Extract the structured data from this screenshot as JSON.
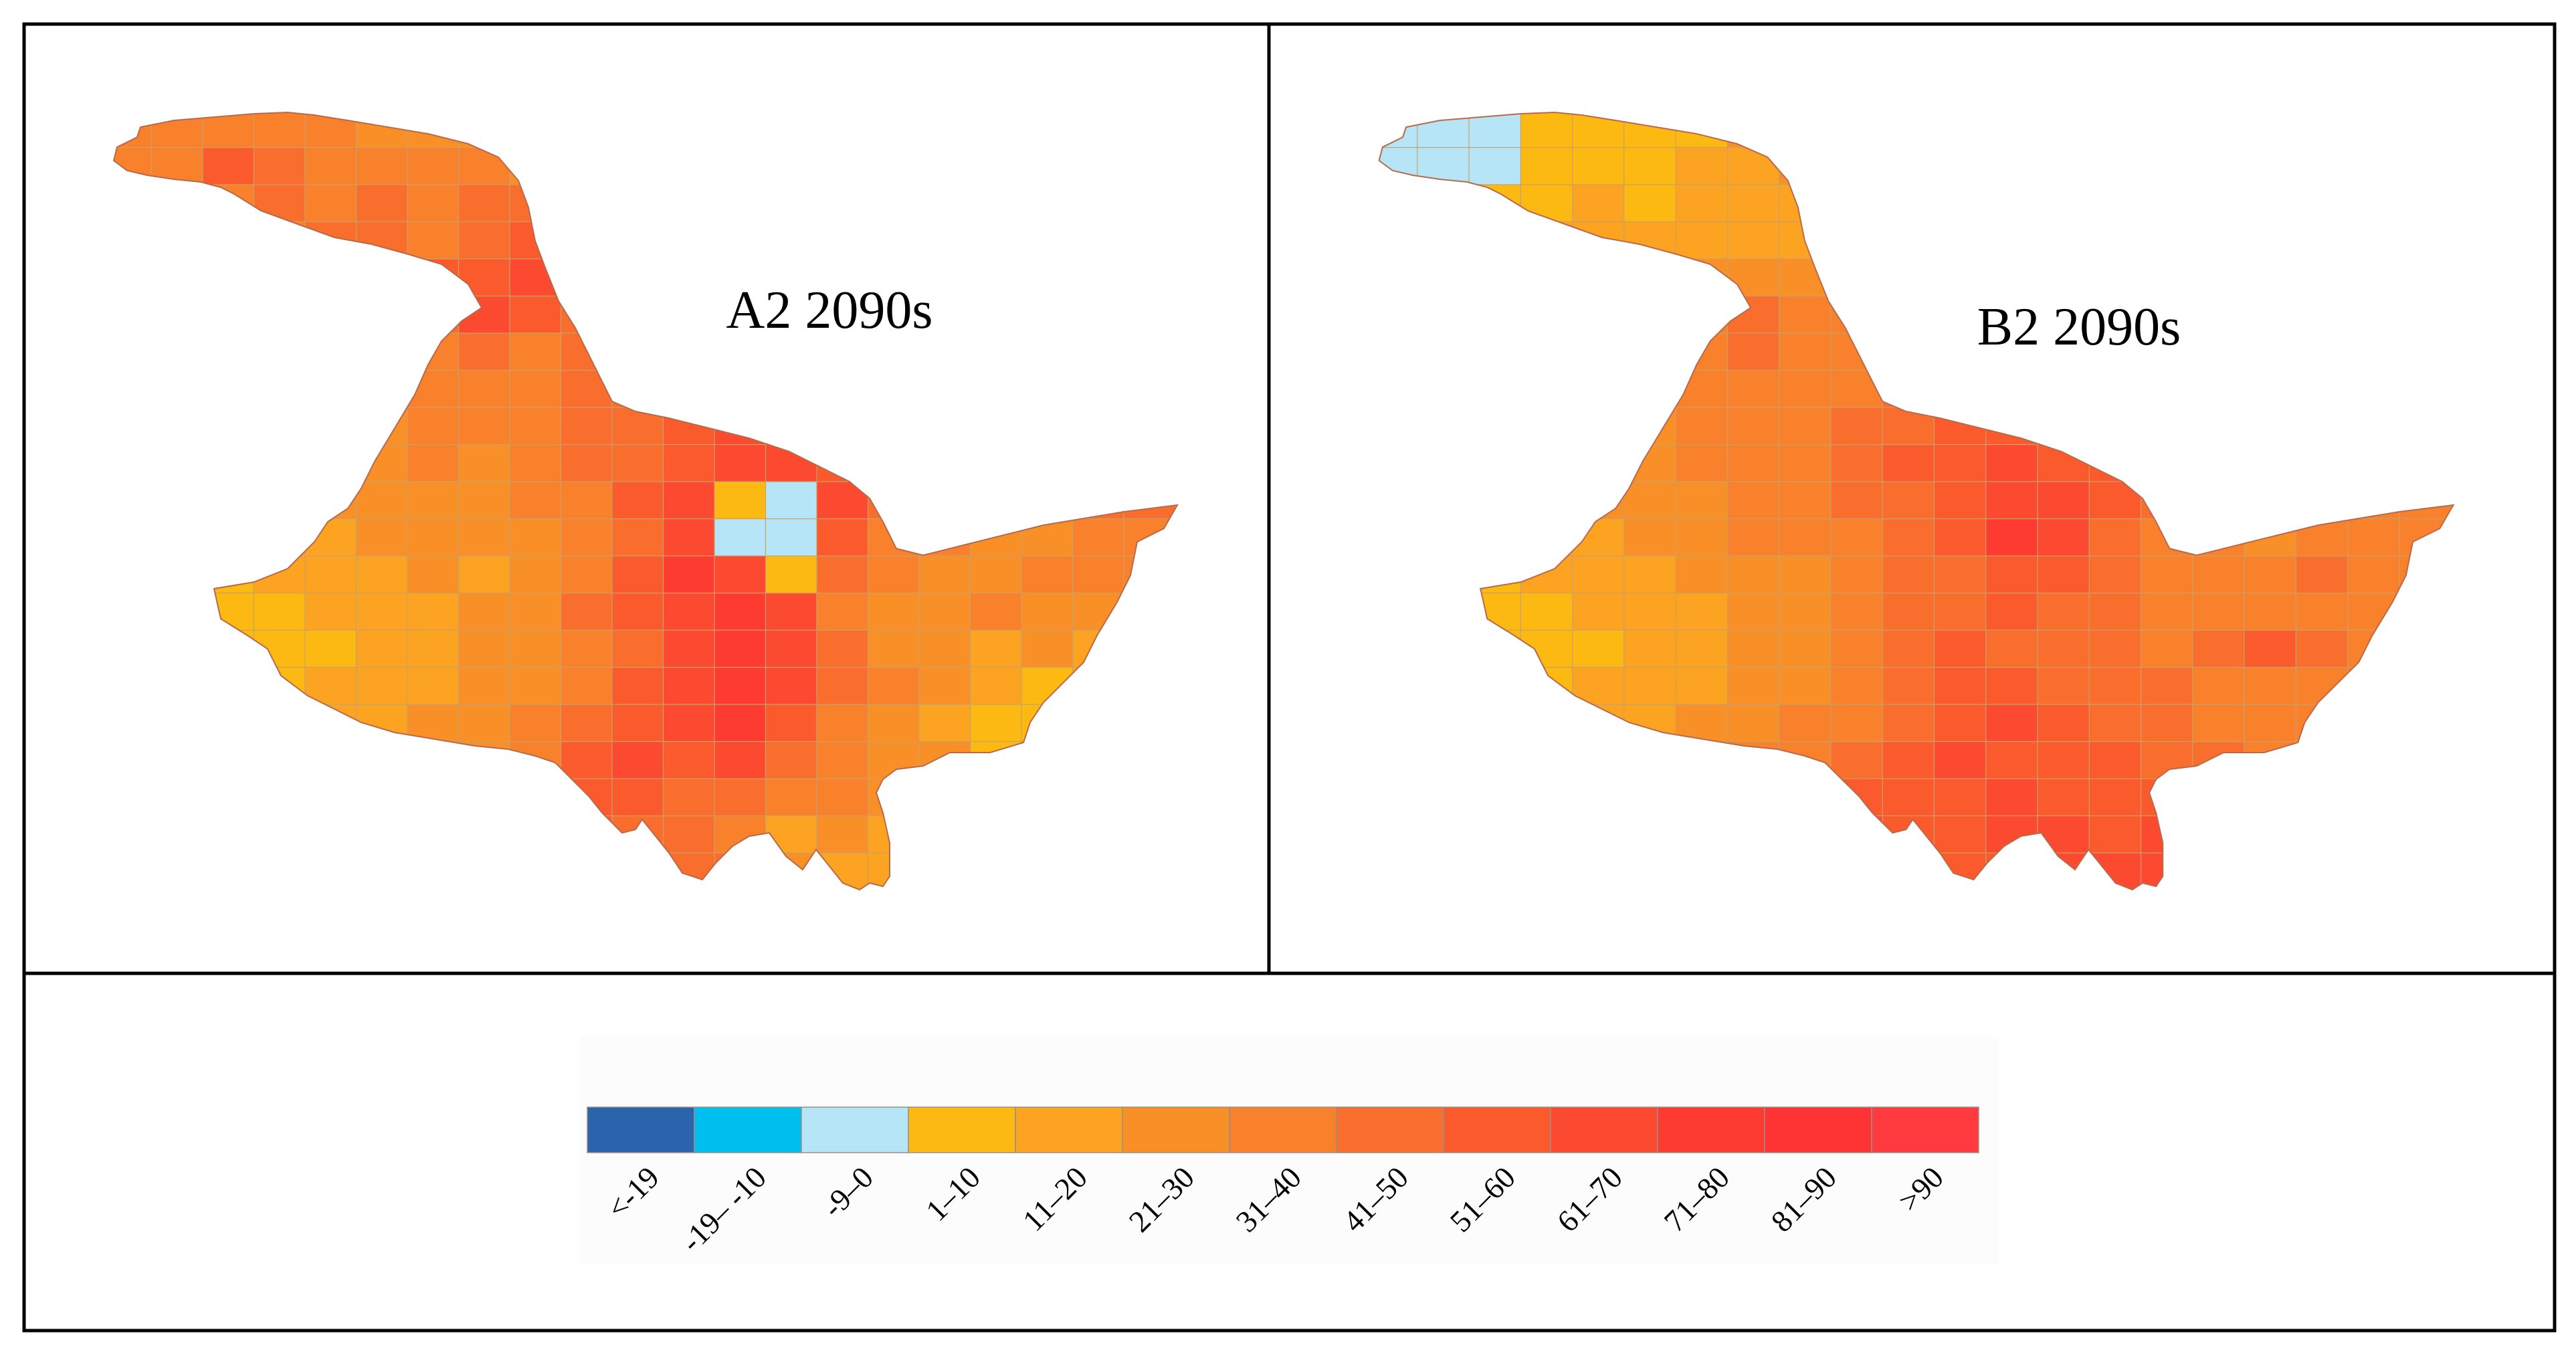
{
  "panels": [
    {
      "id": "a2",
      "label": "A2 2090s"
    },
    {
      "id": "b2",
      "label": "B2 2090s"
    }
  ],
  "legend": {
    "items": [
      {
        "label": "<-19",
        "color": "#2b63ad"
      },
      {
        "label": "-19– -10",
        "color": "#00bfee"
      },
      {
        "label": "-9–0",
        "color": "#b5e5f7"
      },
      {
        "label": "1–10",
        "color": "#fcb912"
      },
      {
        "label": "11–20",
        "color": "#fca422"
      },
      {
        "label": "21–30",
        "color": "#f99027"
      },
      {
        "label": "31–40",
        "color": "#f9812c"
      },
      {
        "label": "41–50",
        "color": "#fa6e2d"
      },
      {
        "label": "51–60",
        "color": "#fb5b2c"
      },
      {
        "label": "61–70",
        "color": "#fc4a30"
      },
      {
        "label": "71–80",
        "color": "#fd3b30"
      },
      {
        "label": "81–90",
        "color": "#fe3333"
      },
      {
        "label": ">90",
        "color": "#ff3b3f"
      }
    ]
  },
  "maps": {
    "a2": {
      "classes": [
        [
          null,
          6,
          6,
          6,
          6,
          5,
          null,
          null,
          null,
          null,
          null,
          null,
          null,
          null,
          null,
          null,
          null,
          null,
          null,
          null,
          null
        ],
        [
          null,
          6,
          8,
          7,
          6,
          6,
          6,
          null,
          null,
          null,
          null,
          null,
          null,
          null,
          null,
          null,
          null,
          null,
          null,
          null,
          null
        ],
        [
          null,
          null,
          6,
          7,
          6,
          7,
          6,
          7,
          null,
          null,
          null,
          null,
          null,
          null,
          null,
          null,
          null,
          null,
          null,
          null,
          null
        ],
        [
          null,
          null,
          6,
          6,
          7,
          7,
          6,
          7,
          8,
          null,
          null,
          null,
          null,
          null,
          null,
          null,
          null,
          null,
          null,
          null,
          null
        ],
        [
          null,
          null,
          null,
          null,
          null,
          null,
          null,
          8,
          9,
          7,
          null,
          null,
          null,
          null,
          null,
          null,
          null,
          null,
          null,
          null,
          null
        ],
        [
          null,
          null,
          null,
          null,
          null,
          null,
          7,
          9,
          8,
          7,
          null,
          null,
          null,
          null,
          null,
          null,
          null,
          null,
          null,
          null,
          null
        ],
        [
          null,
          null,
          null,
          null,
          null,
          7,
          6,
          7,
          6,
          7,
          7,
          6,
          null,
          null,
          null,
          null,
          null,
          null,
          null,
          null,
          null
        ],
        [
          null,
          null,
          null,
          null,
          6,
          6,
          6,
          6,
          6,
          7,
          7,
          8,
          7,
          8,
          null,
          null,
          null,
          null,
          null,
          null,
          null
        ],
        [
          null,
          null,
          null,
          6,
          5,
          5,
          6,
          6,
          6,
          7,
          7,
          8,
          9,
          9,
          8,
          7,
          null,
          null,
          null,
          null,
          null
        ],
        [
          null,
          4,
          4,
          5,
          5,
          5,
          6,
          5,
          6,
          7,
          7,
          8,
          9,
          9,
          8,
          8,
          7,
          7,
          7,
          8,
          8
        ],
        [
          4,
          4,
          4,
          4,
          5,
          5,
          5,
          5,
          6,
          6,
          8,
          9,
          3,
          2,
          9,
          7,
          6,
          6,
          7,
          7,
          null
        ],
        [
          4,
          4,
          3,
          4,
          4,
          5,
          5,
          5,
          5,
          6,
          7,
          9,
          2,
          2,
          8,
          6,
          6,
          5,
          5,
          6,
          null
        ],
        [
          null,
          3,
          3,
          4,
          4,
          4,
          5,
          4,
          5,
          6,
          8,
          10,
          9,
          3,
          7,
          6,
          5,
          5,
          6,
          6,
          null
        ],
        [
          null,
          null,
          3,
          3,
          4,
          4,
          4,
          5,
          5,
          7,
          8,
          9,
          10,
          9,
          6,
          5,
          5,
          6,
          5,
          5,
          null
        ],
        [
          null,
          null,
          3,
          3,
          3,
          4,
          4,
          5,
          5,
          6,
          7,
          9,
          10,
          9,
          7,
          5,
          5,
          4,
          5,
          4,
          null
        ],
        [
          null,
          null,
          null,
          3,
          4,
          4,
          4,
          5,
          5,
          6,
          8,
          9,
          10,
          9,
          7,
          6,
          5,
          4,
          3,
          4,
          null
        ],
        [
          null,
          null,
          null,
          null,
          null,
          4,
          5,
          5,
          6,
          7,
          8,
          9,
          10,
          8,
          6,
          5,
          4,
          3,
          null,
          null,
          null
        ],
        [
          null,
          null,
          null,
          null,
          null,
          null,
          null,
          5,
          6,
          8,
          9,
          8,
          9,
          7,
          6,
          5,
          null,
          null,
          null,
          null,
          null
        ],
        [
          null,
          null,
          null,
          null,
          null,
          null,
          null,
          null,
          9,
          8,
          8,
          7,
          7,
          6,
          6,
          5,
          null,
          null,
          null,
          null,
          null
        ],
        [
          null,
          null,
          null,
          null,
          null,
          null,
          null,
          null,
          7,
          8,
          7,
          7,
          6,
          4,
          5,
          4,
          null,
          null,
          null,
          null,
          null
        ],
        [
          null,
          null,
          null,
          null,
          null,
          null,
          null,
          null,
          null,
          7,
          8,
          7,
          null,
          5,
          4,
          null,
          null,
          null,
          null,
          null,
          null
        ]
      ]
    },
    "b2": {
      "classes": [
        [
          null,
          2,
          2,
          3,
          3,
          3,
          null,
          null,
          null,
          null,
          null,
          null,
          null,
          null,
          null,
          null,
          null,
          null,
          null,
          null,
          null
        ],
        [
          2,
          2,
          2,
          3,
          3,
          3,
          4,
          null,
          null,
          null,
          null,
          null,
          null,
          null,
          null,
          null,
          null,
          null,
          null,
          null,
          null
        ],
        [
          null,
          null,
          3,
          3,
          4,
          3,
          4,
          4,
          null,
          null,
          null,
          null,
          null,
          null,
          null,
          null,
          null,
          null,
          null,
          null,
          null
        ],
        [
          null,
          null,
          3,
          4,
          4,
          4,
          4,
          4,
          4,
          null,
          null,
          null,
          null,
          null,
          null,
          null,
          null,
          null,
          null,
          null,
          null
        ],
        [
          null,
          null,
          null,
          null,
          null,
          null,
          null,
          5,
          5,
          5,
          null,
          null,
          null,
          null,
          null,
          null,
          null,
          null,
          null,
          null,
          null
        ],
        [
          null,
          null,
          null,
          null,
          null,
          null,
          6,
          7,
          6,
          6,
          null,
          null,
          null,
          null,
          null,
          null,
          null,
          null,
          null,
          null,
          null
        ],
        [
          null,
          null,
          null,
          null,
          null,
          6,
          6,
          7,
          6,
          6,
          6,
          6,
          null,
          null,
          null,
          null,
          null,
          null,
          null,
          null,
          null
        ],
        [
          null,
          null,
          null,
          null,
          6,
          6,
          6,
          6,
          6,
          6,
          7,
          6,
          6,
          6,
          null,
          null,
          null,
          null,
          null,
          null,
          null
        ],
        [
          null,
          null,
          null,
          6,
          5,
          5,
          6,
          6,
          6,
          7,
          7,
          8,
          8,
          7,
          6,
          6,
          null,
          null,
          null,
          null,
          null
        ],
        [
          null,
          4,
          4,
          5,
          5,
          5,
          6,
          6,
          6,
          7,
          8,
          8,
          9,
          8,
          8,
          7,
          6,
          6,
          6,
          6,
          6
        ],
        [
          4,
          4,
          4,
          4,
          5,
          5,
          5,
          6,
          6,
          7,
          7,
          8,
          9,
          9,
          8,
          7,
          6,
          6,
          6,
          6,
          null
        ],
        [
          4,
          4,
          3,
          4,
          4,
          5,
          5,
          6,
          6,
          6,
          7,
          8,
          10,
          9,
          7,
          6,
          6,
          5,
          6,
          6,
          null
        ],
        [
          null,
          3,
          3,
          4,
          4,
          4,
          5,
          5,
          5,
          6,
          7,
          7,
          8,
          8,
          7,
          6,
          6,
          6,
          7,
          6,
          null
        ],
        [
          null,
          null,
          3,
          3,
          4,
          4,
          4,
          5,
          5,
          6,
          7,
          7,
          8,
          7,
          7,
          6,
          6,
          6,
          6,
          6,
          null
        ],
        [
          null,
          null,
          3,
          3,
          3,
          4,
          4,
          5,
          5,
          6,
          7,
          8,
          7,
          7,
          7,
          6,
          7,
          8,
          7,
          6,
          null
        ],
        [
          null,
          null,
          null,
          3,
          4,
          4,
          4,
          5,
          5,
          6,
          7,
          8,
          8,
          7,
          7,
          7,
          6,
          6,
          6,
          6,
          null
        ],
        [
          null,
          null,
          null,
          null,
          null,
          4,
          5,
          5,
          6,
          6,
          7,
          8,
          9,
          8,
          7,
          7,
          6,
          6,
          null,
          null,
          null
        ],
        [
          null,
          null,
          null,
          null,
          null,
          null,
          null,
          6,
          6,
          7,
          8,
          9,
          8,
          8,
          8,
          7,
          null,
          null,
          null,
          null,
          null
        ],
        [
          null,
          null,
          null,
          null,
          null,
          null,
          null,
          null,
          7,
          8,
          8,
          8,
          9,
          8,
          8,
          8,
          null,
          null,
          null,
          null,
          null
        ],
        [
          null,
          null,
          null,
          null,
          null,
          null,
          null,
          null,
          8,
          9,
          8,
          8,
          9,
          9,
          8,
          9,
          null,
          null,
          null,
          null,
          null
        ],
        [
          null,
          null,
          null,
          null,
          null,
          null,
          null,
          null,
          null,
          9,
          9,
          8,
          null,
          9,
          9,
          null,
          null,
          null,
          null,
          null,
          null
        ]
      ]
    }
  }
}
